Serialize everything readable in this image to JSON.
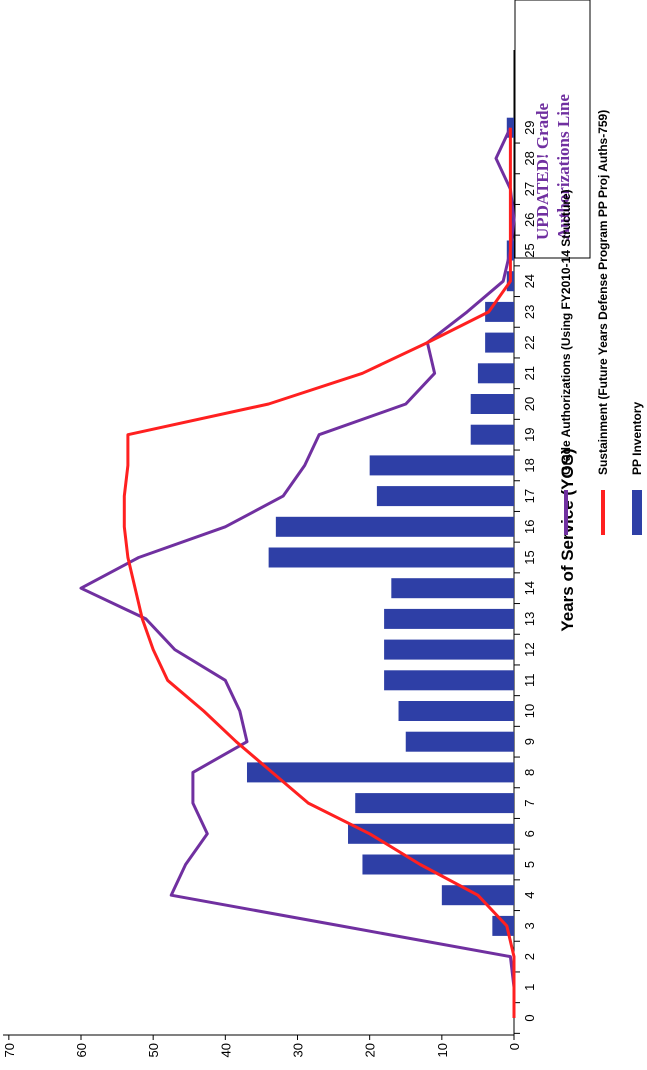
{
  "note": {
    "line1": "UPDATED! Grade",
    "line2": "Authorizations Line",
    "color": "#7030A0"
  },
  "chart_data": {
    "type": "bar",
    "orientation": "rotated 90° clockwise",
    "xlabel": "Years of Service (YOS)",
    "ylabel": "",
    "ylim": [
      0,
      70
    ],
    "yticks": [
      0,
      10,
      20,
      30,
      40,
      50,
      60,
      70
    ],
    "categories": [
      "0",
      "1",
      "2",
      "3",
      "4",
      "5",
      "6",
      "7",
      "8",
      "9",
      "10",
      "11",
      "12",
      "13",
      "14",
      "15",
      "16",
      "17",
      "18",
      "19",
      "20",
      "21",
      "22",
      "23",
      "24",
      "25",
      "26",
      "27",
      "28",
      "29"
    ],
    "grid": false,
    "legend_position": "right",
    "series": [
      {
        "name": "Grade Authorizations (Using FY2010-14 Structure)",
        "type": "line",
        "color": "#7030A0",
        "values": [
          0,
          0,
          0.5,
          24,
          47.5,
          45.5,
          42.5,
          44.5,
          44.5,
          37,
          38,
          40,
          47,
          51,
          60,
          52,
          40,
          32,
          29,
          27,
          15,
          11,
          12,
          6.5,
          1.5,
          0.5,
          0,
          0.5,
          2.5,
          0.5
        ]
      },
      {
        "name": "Sustainment (Future Years Defense Program PP Proj Auths-759)",
        "type": "line",
        "color": "#FF2020",
        "values": [
          0,
          0,
          0,
          1,
          5,
          13,
          20,
          28.5,
          33.5,
          38.5,
          43,
          48,
          50,
          51.5,
          52.5,
          53.5,
          54,
          54,
          53.5,
          53.5,
          34,
          21,
          12,
          3.5,
          0.5,
          0.5,
          0.5,
          0.5,
          0.5,
          0.5
        ]
      },
      {
        "name": "PP Inventory",
        "type": "bar",
        "color": "#2E3FA6",
        "values": [
          0,
          0,
          0,
          3,
          10,
          21,
          23,
          22,
          37,
          15,
          16,
          18,
          18,
          18,
          17,
          34,
          33,
          19,
          20,
          6,
          6,
          5,
          4,
          4,
          1,
          1,
          0.5,
          0,
          0,
          1
        ]
      }
    ]
  }
}
